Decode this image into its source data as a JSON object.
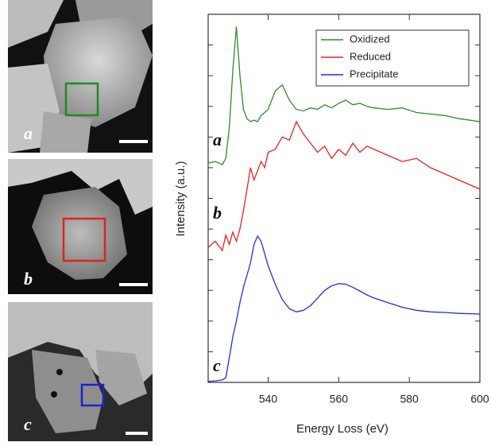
{
  "panels": [
    {
      "label": "a"
    },
    {
      "label": "b"
    },
    {
      "label": "c"
    }
  ],
  "chart_data": {
    "type": "line",
    "x_label": "Energy Loss (eV)",
    "y_label": "Intensity (a.u.)",
    "annotations": [
      "a",
      "b",
      "c"
    ],
    "x": [
      523,
      525,
      527,
      528,
      529,
      530,
      531,
      532,
      533,
      534,
      535,
      536,
      537,
      538,
      539,
      540,
      542,
      544,
      546,
      548,
      550,
      552,
      554,
      556,
      558,
      560,
      562,
      564,
      566,
      568,
      570,
      574,
      578,
      582,
      586,
      590,
      594,
      600
    ],
    "series": [
      {
        "name": "Oxidized",
        "color": "#2e8b2e",
        "values": [
          7.15,
          7.2,
          7.1,
          7.3,
          8.3,
          10.2,
          11.6,
          10.0,
          8.9,
          8.6,
          8.5,
          8.55,
          8.5,
          8.7,
          8.8,
          8.9,
          9.5,
          9.7,
          9.2,
          8.9,
          8.85,
          8.95,
          8.9,
          9.05,
          8.95,
          9.1,
          9.2,
          9.05,
          9.1,
          9.0,
          8.95,
          8.9,
          8.95,
          8.8,
          8.75,
          8.7,
          8.6,
          8.5
        ]
      },
      {
        "name": "Reduced",
        "color": "#e8231e",
        "values": [
          4.4,
          4.6,
          4.3,
          4.8,
          4.5,
          4.9,
          4.6,
          5.0,
          5.6,
          6.3,
          7.0,
          6.6,
          6.9,
          7.2,
          7.0,
          7.5,
          7.6,
          8.0,
          7.9,
          8.5,
          8.1,
          7.8,
          7.5,
          7.7,
          7.3,
          7.6,
          7.4,
          7.8,
          7.5,
          7.7,
          7.6,
          7.4,
          7.2,
          7.3,
          7.0,
          6.8,
          6.6,
          6.3
        ]
      },
      {
        "name": "Precipitate",
        "color": "#2a2ae0",
        "values": [
          0.03,
          0.05,
          0.08,
          0.15,
          0.8,
          1.5,
          2.0,
          2.6,
          3.1,
          3.5,
          3.9,
          4.5,
          4.77,
          4.6,
          4.2,
          3.8,
          3.2,
          2.7,
          2.4,
          2.3,
          2.35,
          2.5,
          2.75,
          3.0,
          3.15,
          3.22,
          3.2,
          3.1,
          2.98,
          2.85,
          2.75,
          2.6,
          2.45,
          2.35,
          2.3,
          2.28,
          2.25,
          2.23
        ]
      }
    ],
    "xlim": [
      523,
      600
    ],
    "xticks": [
      540,
      560,
      580,
      600
    ],
    "ylim": [
      0,
      12
    ],
    "yticks": [
      0,
      1,
      2,
      3,
      4,
      5,
      6,
      7,
      8,
      9,
      10,
      11,
      12
    ],
    "legend": "upper right"
  }
}
